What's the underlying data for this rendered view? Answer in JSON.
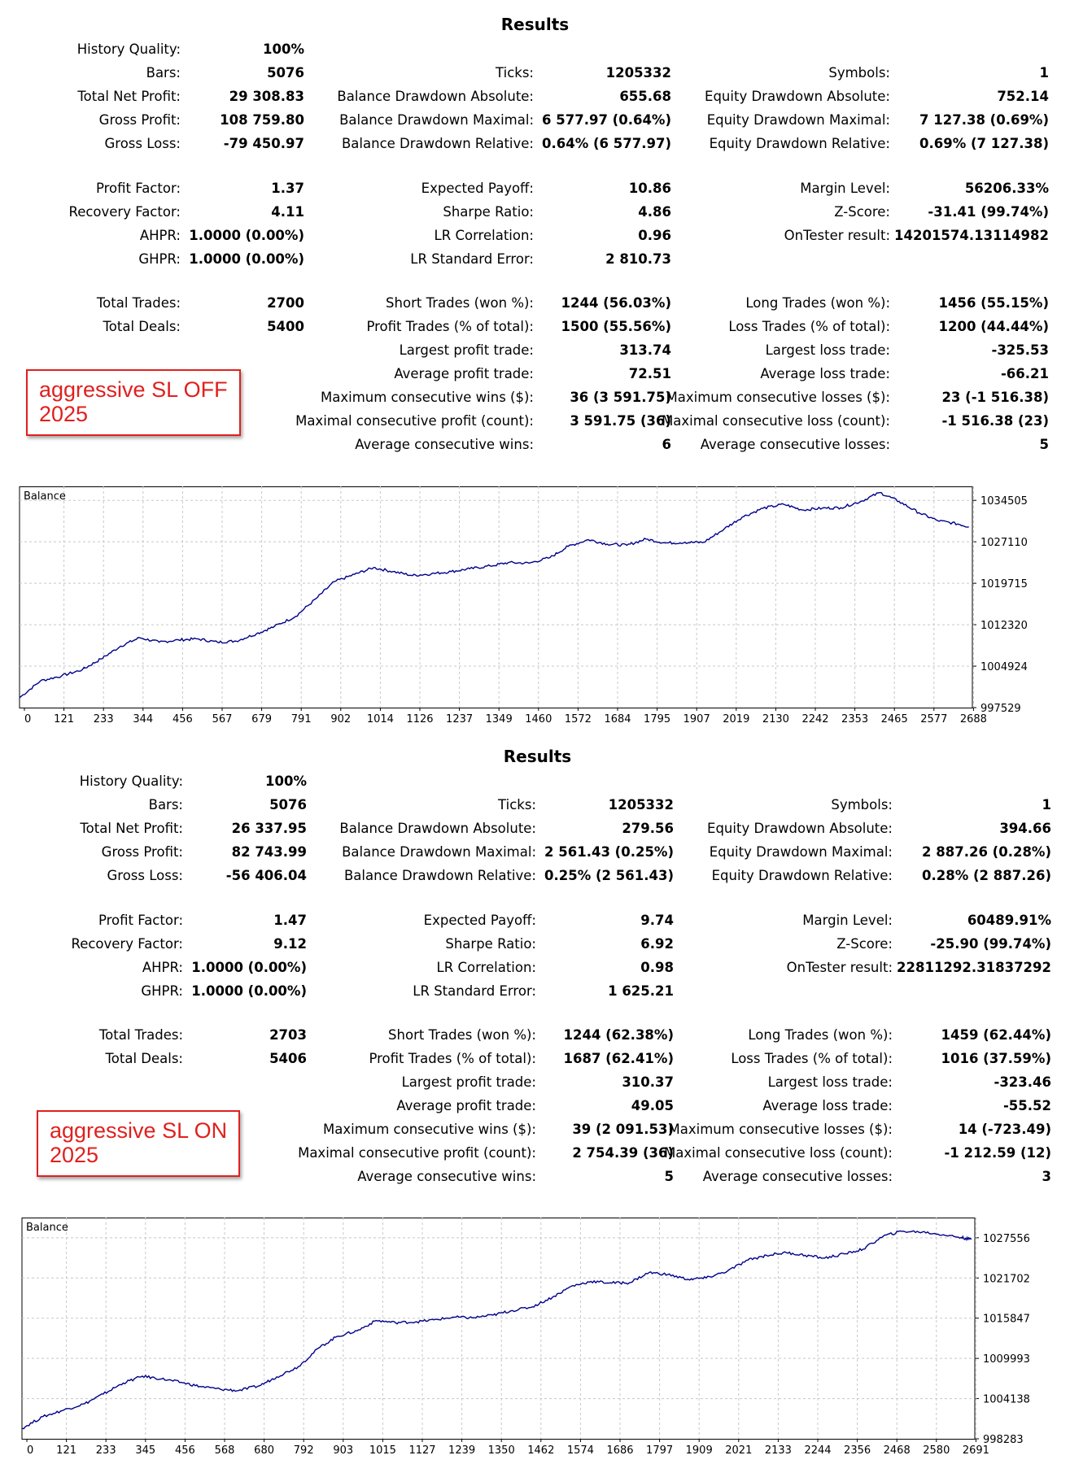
{
  "reports": [
    {
      "title": "Results",
      "tag": [
        "aggressive SL OFF",
        "2025"
      ],
      "rows": [
        [
          "History Quality:",
          "100%"
        ],
        [
          "Bars:",
          "5076",
          "Ticks:",
          "1205332",
          "Symbols:",
          "1"
        ],
        [
          "Total Net Profit:",
          "29 308.83",
          "Balance Drawdown Absolute:",
          "655.68",
          "Equity Drawdown Absolute:",
          "752.14"
        ],
        [
          "Gross Profit:",
          "108 759.80",
          "Balance Drawdown Maximal:",
          "6 577.97 (0.64%)",
          "Equity Drawdown Maximal:",
          "7 127.38 (0.69%)"
        ],
        [
          "Gross Loss:",
          "-79 450.97",
          "Balance Drawdown Relative:",
          "0.64% (6 577.97)",
          "Equity Drawdown Relative:",
          "0.69% (7 127.38)"
        ],
        null,
        [
          "Profit Factor:",
          "1.37",
          "Expected Payoff:",
          "10.86",
          "Margin Level:",
          "56206.33%"
        ],
        [
          "Recovery Factor:",
          "4.11",
          "Sharpe Ratio:",
          "4.86",
          "Z-Score:",
          "-31.41 (99.74%)"
        ],
        [
          "AHPR:",
          "1.0000 (0.00%)",
          "LR Correlation:",
          "0.96",
          "OnTester result:",
          "14201574.13114982"
        ],
        [
          "GHPR:",
          "1.0000 (0.00%)",
          "LR Standard Error:",
          "2 810.73"
        ],
        null,
        [
          "Total Trades:",
          "2700",
          "Short Trades (won %):",
          "1244 (56.03%)",
          "Long Trades (won %):",
          "1456 (55.15%)"
        ],
        [
          "Total Deals:",
          "5400",
          "Profit Trades (% of total):",
          "1500 (55.56%)",
          "Loss Trades (% of total):",
          "1200 (44.44%)"
        ],
        [
          "",
          "",
          "Largest profit trade:",
          "313.74",
          "Largest loss trade:",
          "-325.53"
        ],
        [
          "",
          "",
          "Average profit trade:",
          "72.51",
          "Average loss trade:",
          "-66.21"
        ],
        [
          "",
          "",
          "Maximum consecutive wins ($):",
          "36 (3 591.75)",
          "Maximum consecutive losses ($):",
          "23 (-1 516.38)"
        ],
        [
          "",
          "",
          "Maximal consecutive profit (count):",
          "3 591.75 (36)",
          "Maximal consecutive loss (count):",
          "-1 516.38 (23)"
        ],
        [
          "",
          "",
          "Average consecutive wins:",
          "6",
          "Average consecutive losses:",
          "5"
        ]
      ],
      "chart_data": {
        "type": "line",
        "title": "Balance",
        "x_ticks": [
          "0",
          "121",
          "233",
          "344",
          "456",
          "567",
          "679",
          "791",
          "902",
          "1014",
          "1126",
          "1237",
          "1349",
          "1460",
          "1572",
          "1684",
          "1795",
          "1907",
          "2019",
          "2130",
          "2242",
          "2353",
          "2465",
          "2577",
          "2688"
        ],
        "y_ticks": [
          "1034505",
          "1027110",
          "1019715",
          "1012320",
          "1004924",
          "997529"
        ],
        "ylim": [
          997529,
          1037000
        ],
        "xlim": [
          0,
          2730
        ],
        "line_color": "#00008b",
        "series": [
          {
            "name": "Balance",
            "x": [
              0,
              60,
              121,
              180,
              233,
              290,
              344,
              400,
              456,
              510,
              567,
              620,
              679,
              730,
              791,
              850,
              902,
              960,
              1014,
              1070,
              1126,
              1180,
              1237,
              1290,
              1349,
              1400,
              1460,
              1520,
              1572,
              1630,
              1684,
              1740,
              1795,
              1850,
              1907,
              1960,
              2019,
              2070,
              2130,
              2190,
              2242,
              2300,
              2353,
              2410,
              2465,
              2520,
              2577,
              2630,
              2688,
              2720
            ],
            "y": [
              999300,
              1002300,
              1003200,
              1004300,
              1006200,
              1008500,
              1010000,
              1009200,
              1009600,
              1009800,
              1009200,
              1009400,
              1010700,
              1012000,
              1013800,
              1017000,
              1020000,
              1021300,
              1022500,
              1021800,
              1021100,
              1021400,
              1021800,
              1022300,
              1022800,
              1023400,
              1023300,
              1024300,
              1026300,
              1027500,
              1026700,
              1026500,
              1027600,
              1026900,
              1027000,
              1027000,
              1029400,
              1031500,
              1033100,
              1033800,
              1032800,
              1033100,
              1033200,
              1034300,
              1035900,
              1034300,
              1032300,
              1030900,
              1030300,
              1029800
            ]
          }
        ]
      }
    },
    {
      "title": "Results",
      "tag": [
        "aggressive SL ON",
        "2025"
      ],
      "rows": [
        [
          "History Quality:",
          "100%"
        ],
        [
          "Bars:",
          "5076",
          "Ticks:",
          "1205332",
          "Symbols:",
          "1"
        ],
        [
          "Total Net Profit:",
          "26 337.95",
          "Balance Drawdown Absolute:",
          "279.56",
          "Equity Drawdown Absolute:",
          "394.66"
        ],
        [
          "Gross Profit:",
          "82 743.99",
          "Balance Drawdown Maximal:",
          "2 561.43 (0.25%)",
          "Equity Drawdown Maximal:",
          "2 887.26 (0.28%)"
        ],
        [
          "Gross Loss:",
          "-56 406.04",
          "Balance Drawdown Relative:",
          "0.25% (2 561.43)",
          "Equity Drawdown Relative:",
          "0.28% (2 887.26)"
        ],
        null,
        [
          "Profit Factor:",
          "1.47",
          "Expected Payoff:",
          "9.74",
          "Margin Level:",
          "60489.91%"
        ],
        [
          "Recovery Factor:",
          "9.12",
          "Sharpe Ratio:",
          "6.92",
          "Z-Score:",
          "-25.90 (99.74%)"
        ],
        [
          "AHPR:",
          "1.0000 (0.00%)",
          "LR Correlation:",
          "0.98",
          "OnTester result:",
          "22811292.31837292"
        ],
        [
          "GHPR:",
          "1.0000 (0.00%)",
          "LR Standard Error:",
          "1 625.21"
        ],
        null,
        [
          "Total Trades:",
          "2703",
          "Short Trades (won %):",
          "1244 (62.38%)",
          "Long Trades (won %):",
          "1459 (62.44%)"
        ],
        [
          "Total Deals:",
          "5406",
          "Profit Trades (% of total):",
          "1687 (62.41%)",
          "Loss Trades (% of total):",
          "1016 (37.59%)"
        ],
        [
          "",
          "",
          "Largest profit trade:",
          "310.37",
          "Largest loss trade:",
          "-323.46"
        ],
        [
          "",
          "",
          "Average profit trade:",
          "49.05",
          "Average loss trade:",
          "-55.52"
        ],
        [
          "",
          "",
          "Maximum consecutive wins ($):",
          "39 (2 091.53)",
          "Maximum consecutive losses ($):",
          "14 (-723.49)"
        ],
        [
          "",
          "",
          "Maximal consecutive profit (count):",
          "2 754.39 (36)",
          "Maximal consecutive loss (count):",
          "-1 212.59 (12)"
        ],
        [
          "",
          "",
          "Average consecutive wins:",
          "5",
          "Average consecutive losses:",
          "3"
        ]
      ],
      "chart_data": {
        "type": "line",
        "title": "Balance",
        "x_ticks": [
          "0",
          "121",
          "233",
          "345",
          "456",
          "568",
          "680",
          "792",
          "903",
          "1015",
          "1127",
          "1239",
          "1350",
          "1462",
          "1574",
          "1686",
          "1797",
          "1909",
          "2021",
          "2133",
          "2244",
          "2356",
          "2468",
          "2580",
          "2691"
        ],
        "y_ticks": [
          "1027556",
          "1021702",
          "1015847",
          "1009993",
          "1004138",
          "998283"
        ],
        "ylim": [
          998283,
          1030500
        ],
        "xlim": [
          0,
          2730
        ],
        "line_color": "#00008b",
        "series": [
          {
            "name": "Balance",
            "x": [
              0,
              60,
              121,
              180,
              233,
              290,
              345,
              400,
              456,
              510,
              568,
              620,
              680,
              730,
              792,
              850,
              903,
              960,
              1015,
              1070,
              1127,
              1180,
              1239,
              1290,
              1350,
              1400,
              1462,
              1520,
              1574,
              1630,
              1686,
              1740,
              1797,
              1850,
              1909,
              1960,
              2021,
              2080,
              2133,
              2190,
              2244,
              2300,
              2356,
              2410,
              2468,
              2520,
              2580,
              2640,
              2691,
              2720
            ],
            "y": [
              999800,
              1001500,
              1002500,
              1003400,
              1004800,
              1006400,
              1007400,
              1007000,
              1006500,
              1005900,
              1005500,
              1005300,
              1006000,
              1007300,
              1008800,
              1011500,
              1013200,
              1014000,
              1015500,
              1015200,
              1015300,
              1015600,
              1016000,
              1015900,
              1016300,
              1016900,
              1017500,
              1018900,
              1020500,
              1021200,
              1021000,
              1021000,
              1022500,
              1022200,
              1021500,
              1021700,
              1022700,
              1024300,
              1025000,
              1025400,
              1025000,
              1024600,
              1025200,
              1025900,
              1027800,
              1028500,
              1028400,
              1028000,
              1027600,
              1027300
            ]
          }
        ]
      }
    }
  ]
}
